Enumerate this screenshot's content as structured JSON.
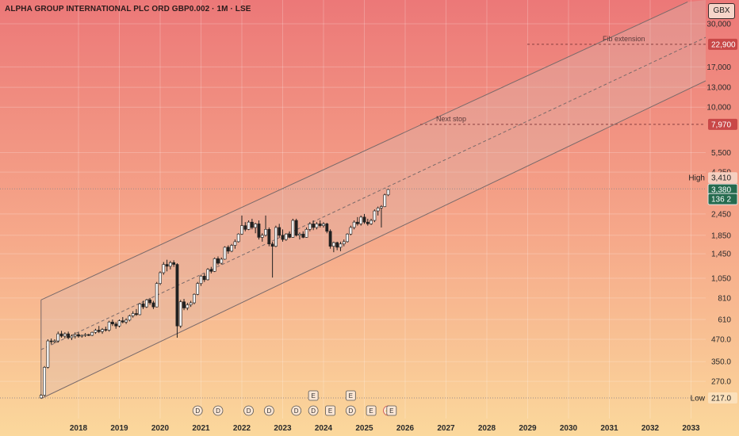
{
  "header": {
    "title": "ALPHA GROUP INTERNATIONAL PLC ORD GBP0.002 · 1M · LSE",
    "currency": "GBX"
  },
  "colors": {
    "bg_top": "#ec7878",
    "bg_bottom": "#fbd79a",
    "candle_body": "#f2f2f2",
    "candle_edge": "#202020",
    "channel_line": "#7a6a6a",
    "channel_fill": "#d9b6b0",
    "tag_red": "#c94848",
    "tag_green": "#256b4f"
  },
  "chart_data": {
    "type": "candlestick",
    "x_axis": {
      "ticks": [
        "2018",
        "2019",
        "2020",
        "2021",
        "2022",
        "2023",
        "2024",
        "2025",
        "2026",
        "2027",
        "2028",
        "2029",
        "2030",
        "2031",
        "2032",
        "2033"
      ]
    },
    "y_axis": {
      "scale": "log",
      "ticks": [
        "30,000",
        "17,000",
        "13,000",
        "10,000",
        "5,500",
        "4,250",
        "2,450",
        "1,850",
        "1,450",
        "1,050",
        "810",
        "610",
        "470.0",
        "350.0",
        "270.0"
      ]
    },
    "markers": {
      "high": {
        "label": "High",
        "value": "3,410"
      },
      "low": {
        "label": "Low",
        "value": "217.0"
      },
      "last": {
        "value": "3,380"
      },
      "last_sub": {
        "value": "136 2"
      },
      "fib_level": {
        "value": "22,900"
      },
      "next_level": {
        "value": "7,970"
      }
    },
    "annotations": [
      {
        "text": "Fib extension"
      },
      {
        "text": "Next stop"
      }
    ],
    "events": [
      {
        "kind": "dividend",
        "glyph": "D",
        "date": "2020-12"
      },
      {
        "kind": "dividend",
        "glyph": "D",
        "date": "2021-06"
      },
      {
        "kind": "dividend",
        "glyph": "D",
        "date": "2022-03"
      },
      {
        "kind": "dividend",
        "glyph": "D",
        "date": "2022-09"
      },
      {
        "kind": "dividend",
        "glyph": "D",
        "date": "2023-05"
      },
      {
        "kind": "dividend",
        "glyph": "D",
        "date": "2023-10"
      },
      {
        "kind": "earnings",
        "glyph": "E",
        "date": "2023-10"
      },
      {
        "kind": "earnings",
        "glyph": "E",
        "date": "2024-03"
      },
      {
        "kind": "dividend",
        "glyph": "D",
        "date": "2024-09"
      },
      {
        "kind": "earnings",
        "glyph": "E",
        "date": "2024-09"
      },
      {
        "kind": "earnings",
        "glyph": "E",
        "date": "2025-03"
      },
      {
        "kind": "split",
        "glyph": "⚡",
        "date": "2025-08"
      },
      {
        "kind": "earnings",
        "glyph": "E",
        "date": "2025-09"
      }
    ],
    "channel": {
      "upper": [
        {
          "date": "2017-02",
          "value": 790
        },
        {
          "date": "2032-12",
          "value": 40000
        }
      ],
      "lower": [
        {
          "date": "2017-02",
          "value": 215
        },
        {
          "date": "2033-08",
          "value": 15000
        }
      ],
      "mid": [
        {
          "date": "2017-02",
          "value": 410
        },
        {
          "date": "2033-07",
          "value": 26000
        }
      ]
    },
    "candles": [
      {
        "d": "2017-02",
        "o": 217,
        "h": 228,
        "l": 217,
        "c": 225
      },
      {
        "d": "2017-03",
        "o": 225,
        "h": 330,
        "l": 222,
        "c": 325
      },
      {
        "d": "2017-04",
        "o": 325,
        "h": 470,
        "l": 320,
        "c": 460
      },
      {
        "d": "2017-05",
        "o": 460,
        "h": 475,
        "l": 440,
        "c": 455
      },
      {
        "d": "2017-06",
        "o": 455,
        "h": 470,
        "l": 445,
        "c": 460
      },
      {
        "d": "2017-07",
        "o": 460,
        "h": 520,
        "l": 450,
        "c": 505
      },
      {
        "d": "2017-08",
        "o": 505,
        "h": 525,
        "l": 480,
        "c": 490
      },
      {
        "d": "2017-09",
        "o": 490,
        "h": 515,
        "l": 475,
        "c": 505
      },
      {
        "d": "2017-10",
        "o": 505,
        "h": 520,
        "l": 470,
        "c": 480
      },
      {
        "d": "2017-11",
        "o": 480,
        "h": 500,
        "l": 465,
        "c": 490
      },
      {
        "d": "2017-12",
        "o": 490,
        "h": 515,
        "l": 475,
        "c": 500
      },
      {
        "d": "2018-01",
        "o": 500,
        "h": 515,
        "l": 480,
        "c": 490
      },
      {
        "d": "2018-02",
        "o": 490,
        "h": 500,
        "l": 480,
        "c": 495
      },
      {
        "d": "2018-03",
        "o": 495,
        "h": 510,
        "l": 485,
        "c": 500
      },
      {
        "d": "2018-04",
        "o": 500,
        "h": 505,
        "l": 490,
        "c": 495
      },
      {
        "d": "2018-05",
        "o": 495,
        "h": 520,
        "l": 490,
        "c": 515
      },
      {
        "d": "2018-06",
        "o": 515,
        "h": 540,
        "l": 505,
        "c": 530
      },
      {
        "d": "2018-07",
        "o": 530,
        "h": 560,
        "l": 510,
        "c": 520
      },
      {
        "d": "2018-08",
        "o": 520,
        "h": 545,
        "l": 505,
        "c": 535
      },
      {
        "d": "2018-09",
        "o": 535,
        "h": 555,
        "l": 520,
        "c": 530
      },
      {
        "d": "2018-10",
        "o": 530,
        "h": 600,
        "l": 520,
        "c": 590
      },
      {
        "d": "2018-11",
        "o": 590,
        "h": 610,
        "l": 560,
        "c": 575
      },
      {
        "d": "2018-12",
        "o": 575,
        "h": 590,
        "l": 540,
        "c": 560
      },
      {
        "d": "2019-01",
        "o": 560,
        "h": 610,
        "l": 550,
        "c": 600
      },
      {
        "d": "2019-02",
        "o": 600,
        "h": 630,
        "l": 580,
        "c": 590
      },
      {
        "d": "2019-03",
        "o": 590,
        "h": 620,
        "l": 575,
        "c": 605
      },
      {
        "d": "2019-04",
        "o": 605,
        "h": 650,
        "l": 595,
        "c": 640
      },
      {
        "d": "2019-05",
        "o": 640,
        "h": 680,
        "l": 625,
        "c": 660
      },
      {
        "d": "2019-06",
        "o": 660,
        "h": 700,
        "l": 640,
        "c": 650
      },
      {
        "d": "2019-07",
        "o": 650,
        "h": 760,
        "l": 645,
        "c": 750
      },
      {
        "d": "2019-08",
        "o": 750,
        "h": 780,
        "l": 700,
        "c": 720
      },
      {
        "d": "2019-09",
        "o": 720,
        "h": 800,
        "l": 710,
        "c": 790
      },
      {
        "d": "2019-10",
        "o": 790,
        "h": 810,
        "l": 740,
        "c": 760
      },
      {
        "d": "2019-11",
        "o": 760,
        "h": 780,
        "l": 700,
        "c": 720
      },
      {
        "d": "2019-12",
        "o": 720,
        "h": 1000,
        "l": 715,
        "c": 980
      },
      {
        "d": "2020-01",
        "o": 980,
        "h": 1150,
        "l": 960,
        "c": 1130
      },
      {
        "d": "2020-02",
        "o": 1130,
        "h": 1300,
        "l": 1100,
        "c": 1260
      },
      {
        "d": "2020-03",
        "o": 1260,
        "h": 1340,
        "l": 1150,
        "c": 1230
      },
      {
        "d": "2020-04",
        "o": 1230,
        "h": 1320,
        "l": 1180,
        "c": 1290
      },
      {
        "d": "2020-05",
        "o": 1290,
        "h": 1330,
        "l": 1220,
        "c": 1260
      },
      {
        "d": "2020-06",
        "o": 1260,
        "h": 1280,
        "l": 480,
        "c": 560
      },
      {
        "d": "2020-07",
        "o": 560,
        "h": 790,
        "l": 545,
        "c": 770
      },
      {
        "d": "2020-08",
        "o": 770,
        "h": 800,
        "l": 690,
        "c": 710
      },
      {
        "d": "2020-09",
        "o": 710,
        "h": 760,
        "l": 690,
        "c": 740
      },
      {
        "d": "2020-10",
        "o": 740,
        "h": 780,
        "l": 720,
        "c": 760
      },
      {
        "d": "2020-11",
        "o": 760,
        "h": 860,
        "l": 745,
        "c": 850
      },
      {
        "d": "2020-12",
        "o": 850,
        "h": 1000,
        "l": 840,
        "c": 980
      },
      {
        "d": "2021-01",
        "o": 980,
        "h": 1100,
        "l": 950,
        "c": 1080
      },
      {
        "d": "2021-02",
        "o": 1080,
        "h": 1120,
        "l": 1000,
        "c": 1030
      },
      {
        "d": "2021-03",
        "o": 1030,
        "h": 1200,
        "l": 1020,
        "c": 1180
      },
      {
        "d": "2021-04",
        "o": 1180,
        "h": 1220,
        "l": 1120,
        "c": 1150
      },
      {
        "d": "2021-05",
        "o": 1150,
        "h": 1380,
        "l": 1140,
        "c": 1360
      },
      {
        "d": "2021-06",
        "o": 1360,
        "h": 1400,
        "l": 1250,
        "c": 1280
      },
      {
        "d": "2021-07",
        "o": 1280,
        "h": 1380,
        "l": 1260,
        "c": 1350
      },
      {
        "d": "2021-08",
        "o": 1350,
        "h": 1600,
        "l": 1340,
        "c": 1580
      },
      {
        "d": "2021-09",
        "o": 1580,
        "h": 1620,
        "l": 1450,
        "c": 1500
      },
      {
        "d": "2021-10",
        "o": 1500,
        "h": 1650,
        "l": 1480,
        "c": 1620
      },
      {
        "d": "2021-11",
        "o": 1620,
        "h": 1750,
        "l": 1550,
        "c": 1700
      },
      {
        "d": "2021-12",
        "o": 1700,
        "h": 1900,
        "l": 1680,
        "c": 1880
      },
      {
        "d": "2022-01",
        "o": 1880,
        "h": 2400,
        "l": 1860,
        "c": 2100
      },
      {
        "d": "2022-02",
        "o": 2100,
        "h": 2200,
        "l": 1950,
        "c": 2000
      },
      {
        "d": "2022-03",
        "o": 2000,
        "h": 2250,
        "l": 1980,
        "c": 2200
      },
      {
        "d": "2022-04",
        "o": 2200,
        "h": 2300,
        "l": 2000,
        "c": 2050
      },
      {
        "d": "2022-05",
        "o": 2050,
        "h": 2180,
        "l": 1900,
        "c": 2150
      },
      {
        "d": "2022-06",
        "o": 2150,
        "h": 2250,
        "l": 1750,
        "c": 1800
      },
      {
        "d": "2022-07",
        "o": 1800,
        "h": 1900,
        "l": 1700,
        "c": 1850
      },
      {
        "d": "2022-08",
        "o": 1850,
        "h": 2400,
        "l": 1820,
        "c": 2000
      },
      {
        "d": "2022-09",
        "o": 2000,
        "h": 2050,
        "l": 1600,
        "c": 1650
      },
      {
        "d": "2022-10",
        "o": 1650,
        "h": 1700,
        "l": 1060,
        "c": 1600
      },
      {
        "d": "2022-11",
        "o": 1600,
        "h": 2100,
        "l": 1580,
        "c": 2050
      },
      {
        "d": "2022-12",
        "o": 2050,
        "h": 2150,
        "l": 1800,
        "c": 1850
      },
      {
        "d": "2023-01",
        "o": 1850,
        "h": 2000,
        "l": 1700,
        "c": 1750
      },
      {
        "d": "2023-02",
        "o": 1750,
        "h": 1900,
        "l": 1720,
        "c": 1880
      },
      {
        "d": "2023-03",
        "o": 1880,
        "h": 1950,
        "l": 1780,
        "c": 1800
      },
      {
        "d": "2023-04",
        "o": 1800,
        "h": 2300,
        "l": 1790,
        "c": 2250
      },
      {
        "d": "2023-05",
        "o": 2250,
        "h": 2300,
        "l": 1820,
        "c": 1850
      },
      {
        "d": "2023-06",
        "o": 1850,
        "h": 1920,
        "l": 1750,
        "c": 1880
      },
      {
        "d": "2023-07",
        "o": 1880,
        "h": 1950,
        "l": 1780,
        "c": 1800
      },
      {
        "d": "2023-08",
        "o": 1800,
        "h": 2050,
        "l": 1790,
        "c": 2000
      },
      {
        "d": "2023-09",
        "o": 2000,
        "h": 2200,
        "l": 1950,
        "c": 2150
      },
      {
        "d": "2023-10",
        "o": 2150,
        "h": 2250,
        "l": 1980,
        "c": 2050
      },
      {
        "d": "2023-11",
        "o": 2050,
        "h": 2200,
        "l": 2000,
        "c": 2150
      },
      {
        "d": "2023-12",
        "o": 2150,
        "h": 2250,
        "l": 2050,
        "c": 2100
      },
      {
        "d": "2024-01",
        "o": 2100,
        "h": 2200,
        "l": 2050,
        "c": 2150
      },
      {
        "d": "2024-02",
        "o": 2150,
        "h": 2180,
        "l": 1900,
        "c": 1950
      },
      {
        "d": "2024-03",
        "o": 1950,
        "h": 2000,
        "l": 1550,
        "c": 1600
      },
      {
        "d": "2024-04",
        "o": 1600,
        "h": 1700,
        "l": 1480,
        "c": 1680
      },
      {
        "d": "2024-05",
        "o": 1680,
        "h": 1700,
        "l": 1520,
        "c": 1580
      },
      {
        "d": "2024-06",
        "o": 1580,
        "h": 1700,
        "l": 1500,
        "c": 1650
      },
      {
        "d": "2024-07",
        "o": 1650,
        "h": 1750,
        "l": 1600,
        "c": 1700
      },
      {
        "d": "2024-08",
        "o": 1700,
        "h": 1900,
        "l": 1680,
        "c": 1880
      },
      {
        "d": "2024-09",
        "o": 1880,
        "h": 2100,
        "l": 1850,
        "c": 2050
      },
      {
        "d": "2024-10",
        "o": 2050,
        "h": 2250,
        "l": 2000,
        "c": 2200
      },
      {
        "d": "2024-11",
        "o": 2200,
        "h": 2350,
        "l": 2100,
        "c": 2150
      },
      {
        "d": "2024-12",
        "o": 2150,
        "h": 2400,
        "l": 2100,
        "c": 2350
      },
      {
        "d": "2025-01",
        "o": 2350,
        "h": 2450,
        "l": 2150,
        "c": 2200
      },
      {
        "d": "2025-02",
        "o": 2200,
        "h": 2300,
        "l": 2100,
        "c": 2150
      },
      {
        "d": "2025-03",
        "o": 2150,
        "h": 2300,
        "l": 2120,
        "c": 2250
      },
      {
        "d": "2025-04",
        "o": 2250,
        "h": 2600,
        "l": 2200,
        "c": 2550
      },
      {
        "d": "2025-05",
        "o": 2550,
        "h": 2700,
        "l": 2400,
        "c": 2650
      },
      {
        "d": "2025-06",
        "o": 2650,
        "h": 2750,
        "l": 2050,
        "c": 2700
      },
      {
        "d": "2025-07",
        "o": 2700,
        "h": 3200,
        "l": 2680,
        "c": 3150
      },
      {
        "d": "2025-08",
        "o": 3150,
        "h": 3410,
        "l": 3100,
        "c": 3380
      }
    ]
  }
}
